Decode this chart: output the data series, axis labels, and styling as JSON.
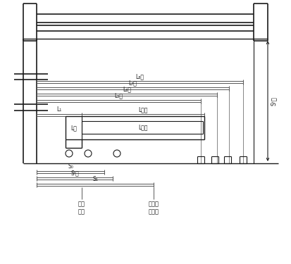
{
  "bg_color": "#ffffff",
  "line_color": "#1a1a1a",
  "gray_color": "#555555",
  "labels": {
    "L8": "L₈测",
    "L7": "L₇测",
    "L6": "L₆测",
    "L5": "L₅测",
    "L_maopi": "L毛块",
    "L_chengpin": "L成品",
    "L_jian": "L剪",
    "L1": "L₁",
    "S0": "S₀",
    "ST_jia": "Sᵗ夹",
    "S1": "S₁",
    "ST_ce": "Sᵗ平",
    "chushi": "初始\n位置",
    "erjia": "二次夹\n板位置"
  }
}
